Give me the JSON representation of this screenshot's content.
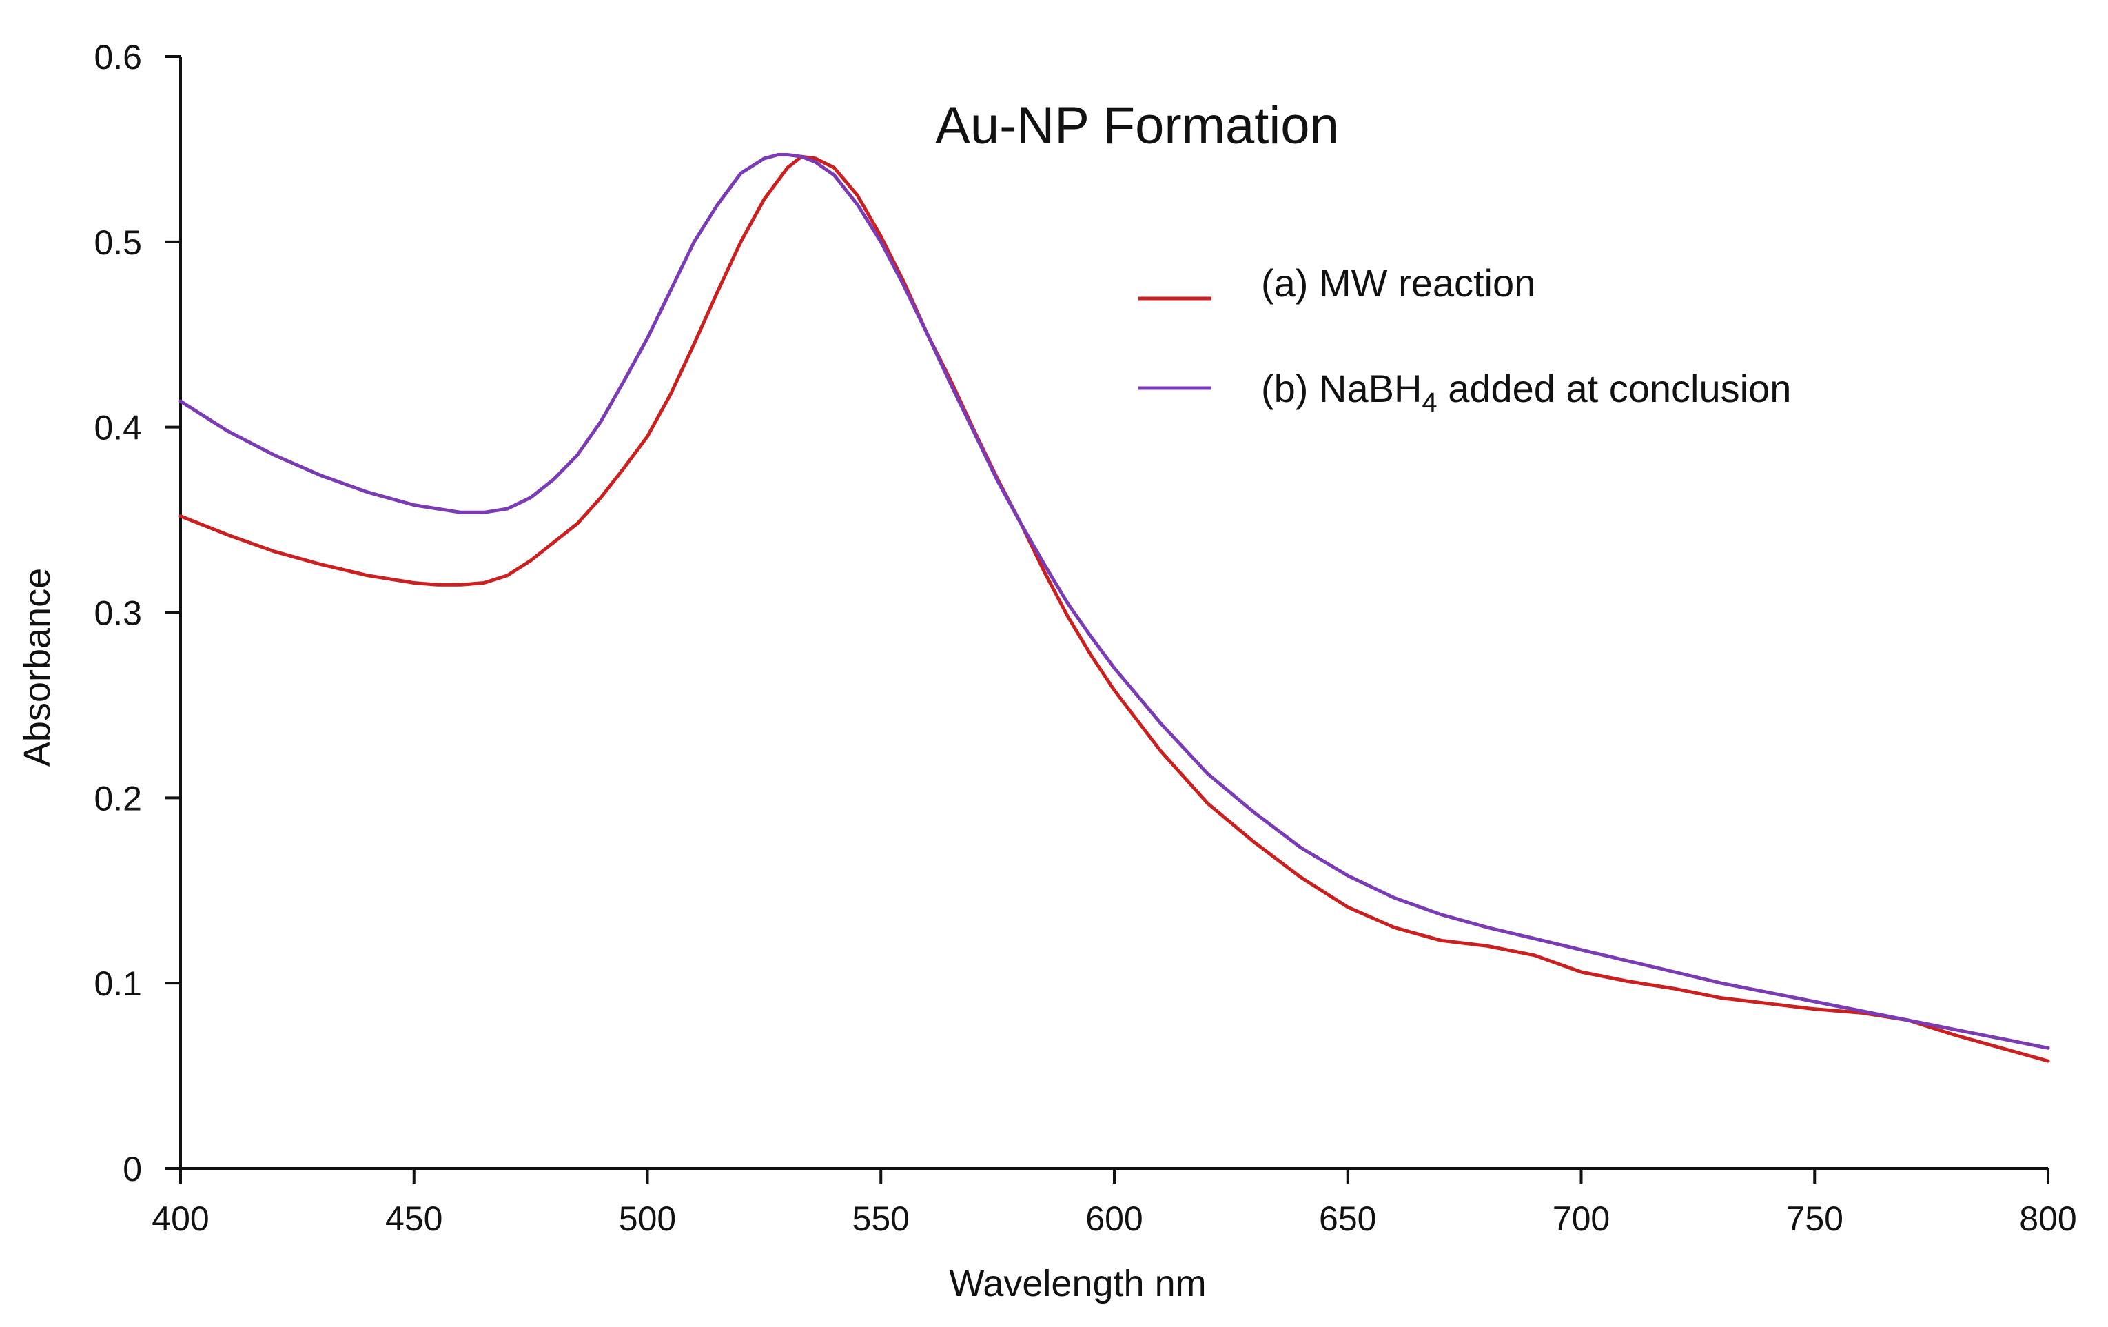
{
  "chart_data": {
    "type": "line",
    "title": "Au-NP Formation",
    "xlabel": "Wavelength nm",
    "ylabel": "Absorbance",
    "xlim": [
      400,
      800
    ],
    "ylim": [
      0,
      0.6
    ],
    "xticks": [
      400,
      450,
      500,
      550,
      600,
      650,
      700,
      750,
      800
    ],
    "yticks": [
      0,
      0.1,
      0.2,
      0.3,
      0.4,
      0.5,
      0.6
    ],
    "xtick_labels": [
      "400",
      "450",
      "500",
      "550",
      "600",
      "650",
      "700",
      "750",
      "800"
    ],
    "ytick_labels": [
      "0",
      "0.1",
      "0.2",
      "0.3",
      "0.4",
      "0.5",
      "0.6"
    ],
    "grid": false,
    "legend_position": "top-right",
    "series": [
      {
        "name": "(a) MW reaction",
        "label_prefix": "(a) MW reaction",
        "color": "#cc1f1f",
        "x": [
          400,
          410,
          420,
          430,
          440,
          450,
          455,
          460,
          465,
          470,
          475,
          480,
          485,
          490,
          495,
          500,
          505,
          510,
          515,
          520,
          525,
          530,
          533,
          536,
          540,
          545,
          550,
          555,
          560,
          565,
          570,
          575,
          580,
          585,
          590,
          595,
          600,
          610,
          620,
          630,
          640,
          650,
          660,
          670,
          680,
          690,
          700,
          710,
          720,
          730,
          740,
          750,
          760,
          770,
          780,
          790,
          800
        ],
        "y": [
          0.352,
          0.342,
          0.333,
          0.326,
          0.32,
          0.316,
          0.315,
          0.315,
          0.316,
          0.32,
          0.328,
          0.338,
          0.348,
          0.362,
          0.378,
          0.395,
          0.418,
          0.445,
          0.473,
          0.5,
          0.523,
          0.54,
          0.546,
          0.545,
          0.54,
          0.525,
          0.503,
          0.478,
          0.45,
          0.425,
          0.398,
          0.372,
          0.348,
          0.322,
          0.298,
          0.277,
          0.258,
          0.225,
          0.197,
          0.176,
          0.157,
          0.141,
          0.13,
          0.123,
          0.12,
          0.115,
          0.106,
          0.101,
          0.097,
          0.092,
          0.089,
          0.086,
          0.084,
          0.08,
          0.072,
          0.065,
          0.058
        ]
      },
      {
        "name": "(b) NaBH4 added at conclusion",
        "label_prefix": "(b) NaBH",
        "label_subscript": "4",
        "label_suffix": " added at conclusion",
        "color": "#7a3bb4",
        "x": [
          400,
          410,
          420,
          430,
          440,
          450,
          455,
          460,
          465,
          470,
          475,
          480,
          485,
          490,
          495,
          500,
          505,
          510,
          515,
          520,
          525,
          528,
          530,
          533,
          536,
          540,
          545,
          550,
          555,
          560,
          565,
          570,
          575,
          580,
          585,
          590,
          595,
          600,
          610,
          620,
          630,
          640,
          650,
          660,
          670,
          680,
          690,
          700,
          710,
          720,
          730,
          740,
          750,
          760,
          770,
          780,
          790,
          800
        ],
        "y": [
          0.414,
          0.398,
          0.385,
          0.374,
          0.365,
          0.358,
          0.356,
          0.354,
          0.354,
          0.356,
          0.362,
          0.372,
          0.385,
          0.403,
          0.425,
          0.448,
          0.474,
          0.5,
          0.52,
          0.537,
          0.545,
          0.547,
          0.547,
          0.546,
          0.543,
          0.536,
          0.52,
          0.5,
          0.476,
          0.45,
          0.423,
          0.397,
          0.371,
          0.348,
          0.326,
          0.305,
          0.287,
          0.27,
          0.24,
          0.213,
          0.192,
          0.173,
          0.158,
          0.146,
          0.137,
          0.13,
          0.124,
          0.118,
          0.112,
          0.106,
          0.1,
          0.095,
          0.09,
          0.085,
          0.08,
          0.075,
          0.07,
          0.065
        ]
      }
    ]
  }
}
